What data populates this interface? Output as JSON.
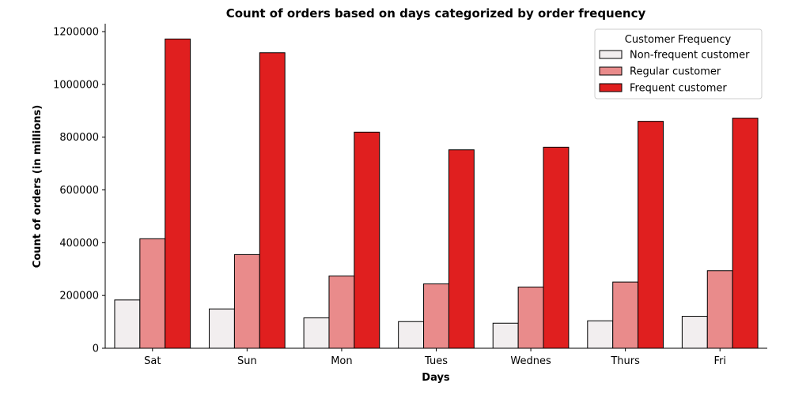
{
  "chart_data": {
    "type": "bar",
    "title": "Count of orders based on days categorized by order frequency",
    "xlabel": "Days",
    "ylabel": "Count of orders (in millions)",
    "categories": [
      "Sat",
      "Sun",
      "Mon",
      "Tues",
      "Wednes",
      "Thurs",
      "Fri"
    ],
    "series": [
      {
        "name": "Non-frequent customer",
        "color": "#f2eeef",
        "values": [
          183000,
          149000,
          115000,
          101000,
          95000,
          104000,
          121000
        ]
      },
      {
        "name": "Regular customer",
        "color": "#e98b8b",
        "values": [
          415000,
          355000,
          274000,
          244000,
          232000,
          251000,
          294000
        ]
      },
      {
        "name": "Frequent customer",
        "color": "#e01f1f",
        "values": [
          1172000,
          1120000,
          819000,
          752000,
          762000,
          860000,
          872000
        ]
      }
    ],
    "ylim": [
      0,
      1230000
    ],
    "yticks": [
      0,
      200000,
      400000,
      600000,
      800000,
      1000000,
      1200000
    ],
    "grid": false,
    "legend": {
      "title": "Customer Frequency",
      "position": "top-right"
    }
  }
}
